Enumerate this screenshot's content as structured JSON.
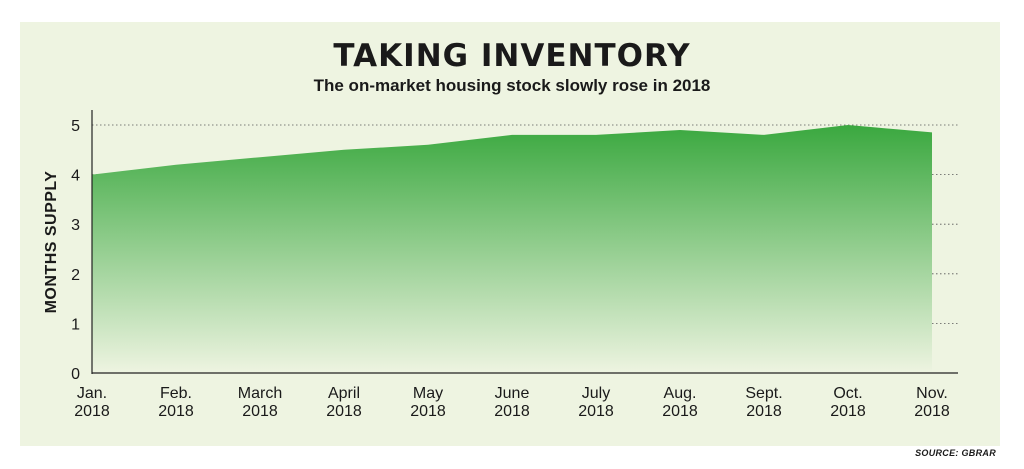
{
  "title": "TAKING INVENTORY",
  "subtitle": "The on-market housing stock slowly rose in 2018",
  "source": "SOURCE: GBRAR",
  "colors": {
    "background": "#eef4e1",
    "area_top": "#3aa83f",
    "area_bottom": "#eef4e1",
    "text": "#1a1a1a"
  },
  "chart_data": {
    "type": "area",
    "title": "TAKING INVENTORY",
    "subtitle": "The on-market housing stock slowly rose in 2018",
    "ylabel": "MONTHS SUPPLY",
    "xlabel": "",
    "categories": [
      [
        "Jan.",
        "2018"
      ],
      [
        "Feb.",
        "2018"
      ],
      [
        "March",
        "2018"
      ],
      [
        "April",
        "2018"
      ],
      [
        "May",
        "2018"
      ],
      [
        "June",
        "2018"
      ],
      [
        "July",
        "2018"
      ],
      [
        "Aug.",
        "2018"
      ],
      [
        "Sept.",
        "2018"
      ],
      [
        "Oct.",
        "2018"
      ],
      [
        "Nov.",
        "2018"
      ]
    ],
    "values": [
      4.0,
      4.2,
      4.35,
      4.5,
      4.6,
      4.8,
      4.8,
      4.9,
      4.8,
      5.0,
      4.85
    ],
    "ylim": [
      0,
      5
    ],
    "yticks": [
      "0",
      "1",
      "2",
      "3",
      "4",
      "5"
    ],
    "grid": "horizontal dotted"
  }
}
